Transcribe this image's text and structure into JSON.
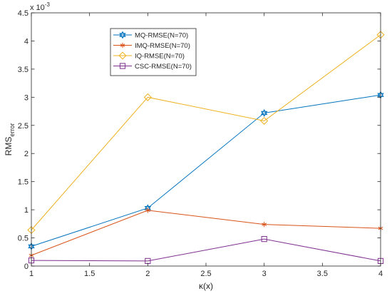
{
  "chart_data": {
    "type": "line",
    "title": "",
    "xlabel": "κ(x)",
    "ylabel": "RMS",
    "ylabel_subscript": "error",
    "y_exponent": "x 10",
    "y_exponent_power": "-3",
    "xlim": [
      1,
      4
    ],
    "ylim": [
      0,
      4.5
    ],
    "x_ticks": [
      "1",
      "1.5",
      "2",
      "2.5",
      "3",
      "3.5",
      "4"
    ],
    "y_ticks": [
      "0",
      "0.5",
      "1",
      "1.5",
      "2",
      "2.5",
      "3",
      "3.5",
      "4",
      "4.5"
    ],
    "x_tick_values": [
      1,
      1.5,
      2,
      2.5,
      3,
      3.5,
      4
    ],
    "y_tick_values": [
      0,
      0.5,
      1,
      1.5,
      2,
      2.5,
      3,
      3.5,
      4,
      4.5
    ],
    "x": [
      1,
      2,
      3,
      4
    ],
    "grid": false,
    "legend_position": "top-left",
    "series": [
      {
        "name": "MQ-RMSE(N=70)",
        "values": [
          0.35,
          1.03,
          2.72,
          3.04
        ],
        "color": "#0072BD",
        "marker": "hexagram"
      },
      {
        "name": "IMQ-RMSE(N=70)",
        "values": [
          0.19,
          0.99,
          0.74,
          0.67
        ],
        "color": "#D95319",
        "marker": "asterisk"
      },
      {
        "name": "IQ-RMSE(N=70)",
        "values": [
          0.64,
          3.0,
          2.58,
          4.11
        ],
        "color": "#EDB120",
        "marker": "diamond"
      },
      {
        "name": "CSC-RMSE(N=70)",
        "values": [
          0.1,
          0.09,
          0.48,
          0.09
        ],
        "color": "#7E2F8E",
        "marker": "square"
      }
    ]
  }
}
